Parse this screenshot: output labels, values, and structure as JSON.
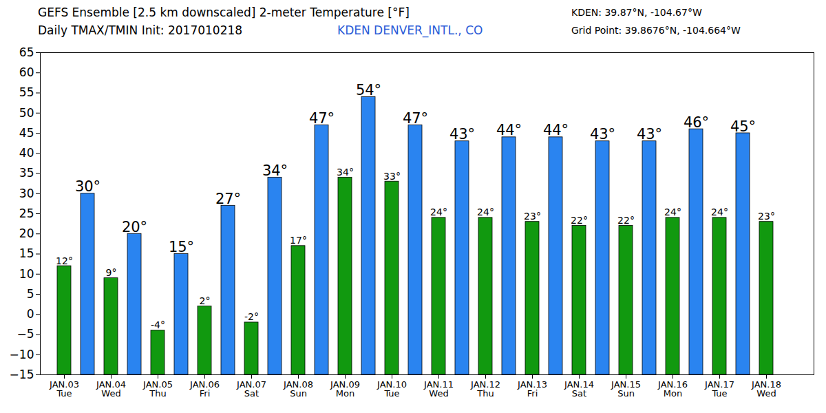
{
  "chart_data": {
    "type": "bar",
    "title": "GEFS Ensemble [2.5 km downscaled] 2-meter Temperature [°F]",
    "subtitle": "Daily TMAX/TMIN Init: 2017010218",
    "annotations": [
      "KDEN DENVER_INTL., CO",
      "KDEN: 39.87°N, -104.67°W",
      "Grid Point: 39.8676°N, -104.664°W"
    ],
    "categories": [
      "JAN.03\nTue",
      "JAN.04\nWed",
      "JAN.05\nThu",
      "JAN.06\nFri",
      "JAN.07\nSat",
      "JAN.08\nSun",
      "JAN.09\nMon",
      "JAN.10\nTue",
      "JAN.11\nWed",
      "JAN.12\nThu",
      "JAN.13\nFri",
      "JAN.14\nSat",
      "JAN.15\nSun",
      "JAN.16\nMon",
      "JAN.17\nTue",
      "JAN.18\nWed"
    ],
    "series": [
      {
        "color": "#11990f",
        "values": [
          12,
          9,
          -4,
          2,
          -2,
          17,
          34,
          33,
          24,
          24,
          23,
          22,
          22,
          24,
          24,
          23
        ],
        "value_labels": [
          "12°",
          "9°",
          "-4°",
          "2°",
          "-2°",
          "17°",
          "34°",
          "33°",
          "24°",
          "24°",
          "23°",
          "22°",
          "22°",
          "24°",
          "24°",
          "23°"
        ]
      },
      {
        "color": "#2a84f0",
        "values": [
          30,
          20,
          15,
          27,
          34,
          47,
          54,
          47,
          43,
          44,
          44,
          43,
          43,
          46,
          45,
          null
        ],
        "value_labels": [
          "30°",
          "20°",
          "15°",
          "27°",
          "34°",
          "47°",
          "54°",
          "47°",
          "43°",
          "44°",
          "44°",
          "43°",
          "43°",
          "46°",
          "45°",
          null
        ]
      }
    ],
    "ylim": [
      -15,
      65
    ],
    "yticks": [
      -15,
      -10,
      -5,
      0,
      5,
      10,
      15,
      20,
      25,
      30,
      35,
      40,
      45,
      50,
      55,
      60,
      65
    ],
    "grid": false,
    "data_labels": true
  }
}
